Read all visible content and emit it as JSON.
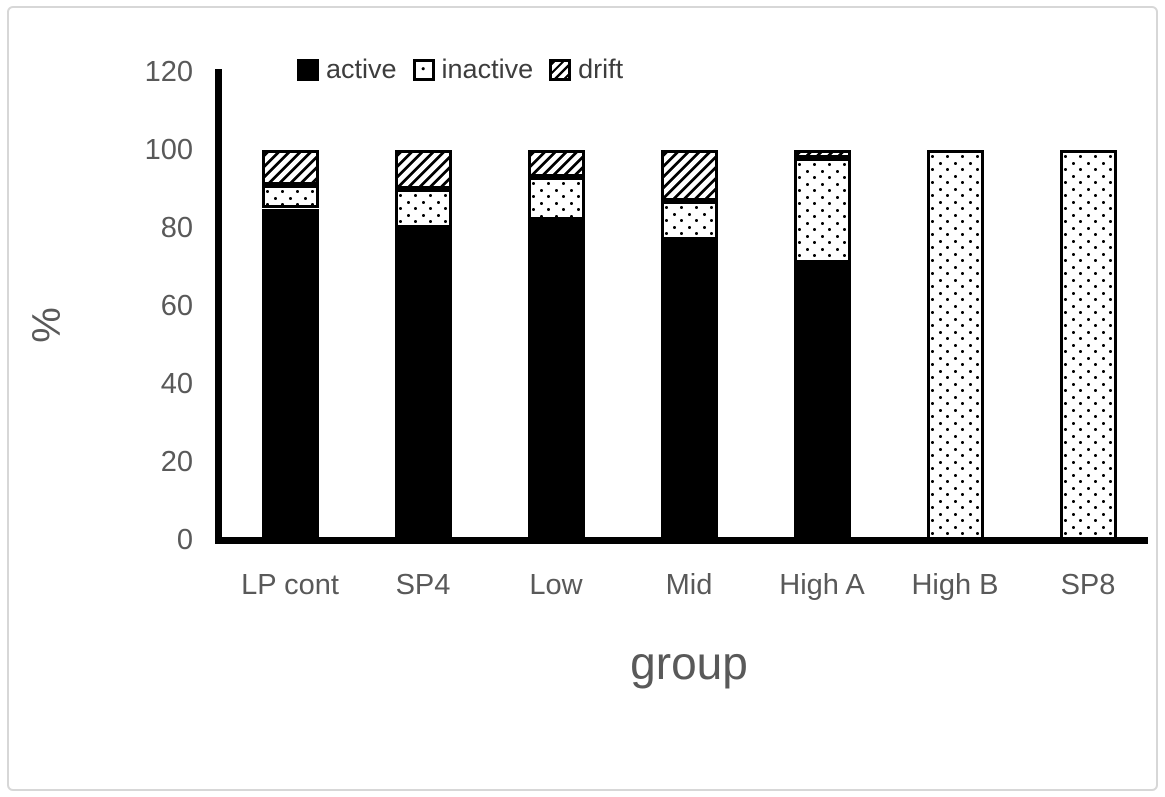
{
  "figure": {
    "background": "#ffffff",
    "frame_border_color": "#d7d7d7"
  },
  "chart_data": {
    "type": "bar",
    "stacked": true,
    "title": "",
    "xlabel": "group",
    "ylabel": "%",
    "ylim": [
      0,
      120
    ],
    "yticks": [
      0,
      20,
      40,
      60,
      80,
      100,
      120
    ],
    "grid": false,
    "legend_position": "top",
    "categories": [
      "LP cont",
      "SP4",
      "Low",
      "Mid",
      "High A",
      "High B",
      "SP8"
    ],
    "series": [
      {
        "name": "active",
        "pattern": "solid-black",
        "values": [
          85,
          80,
          82,
          77,
          71,
          0,
          0
        ]
      },
      {
        "name": "inactive",
        "pattern": "dots",
        "values": [
          6,
          10,
          11,
          10,
          27,
          100,
          100
        ]
      },
      {
        "name": "drift",
        "pattern": "diagonal-hatch",
        "values": [
          9,
          10,
          7,
          13,
          2,
          0,
          0
        ]
      }
    ],
    "colors": {
      "bar_fill": "#000000",
      "bar_border": "#000000",
      "axis": "#000000",
      "tick_label": "#595959",
      "axis_title": "#595959",
      "legend_text": "#3d3d3d"
    }
  }
}
